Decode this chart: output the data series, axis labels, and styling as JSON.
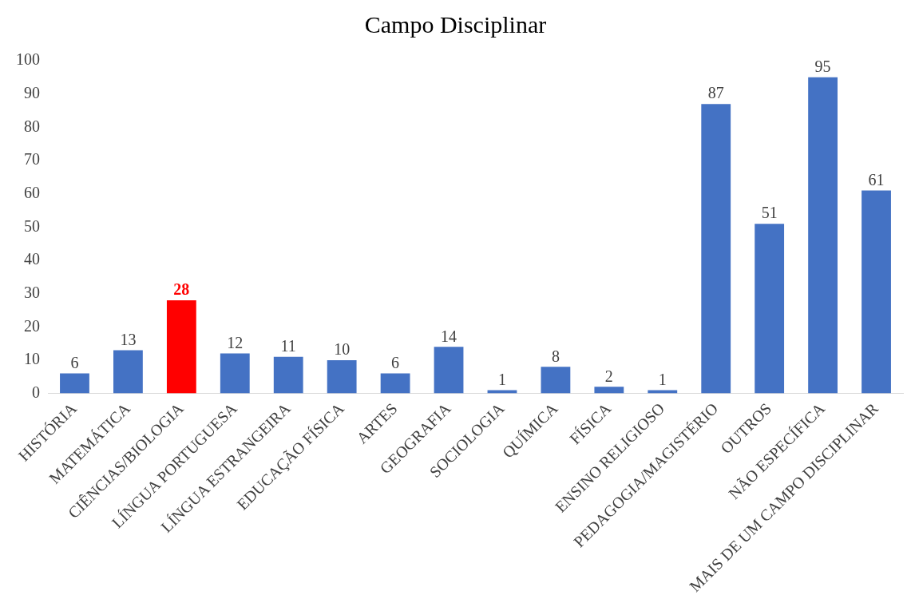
{
  "chart_data": {
    "type": "bar",
    "title": "Campo Disciplinar",
    "categories": [
      "HISTÓRIA",
      "MATEMÁTICA",
      "CIÊNCIAS/BIOLOGIA",
      "LÍNGUA PORTUGUESA",
      "LÍNGUA ESTRANGEIRA",
      "EDUCAÇÃO FÍSICA",
      "ARTES",
      "GEOGRAFIA",
      "SOCIOLOGIA",
      "QUÍMICA",
      "FÍSICA",
      "ENSINO RELIGIOSO",
      "PEDAGOGIA/MAGISTÉRIO",
      "OUTROS",
      "NÃO ESPECÍFICA",
      "MAIS DE UM CAMPO DISCIPLINAR"
    ],
    "values": [
      6,
      13,
      28,
      12,
      11,
      10,
      6,
      14,
      1,
      8,
      2,
      1,
      87,
      51,
      95,
      61
    ],
    "colors": [
      "#4472c4",
      "#4472c4",
      "#ff0000",
      "#4472c4",
      "#4472c4",
      "#4472c4",
      "#4472c4",
      "#4472c4",
      "#4472c4",
      "#4472c4",
      "#4472c4",
      "#4472c4",
      "#4472c4",
      "#4472c4",
      "#4472c4",
      "#4472c4"
    ],
    "ylim": [
      0,
      100
    ],
    "yticks": [
      0,
      10,
      20,
      30,
      40,
      50,
      60,
      70,
      80,
      90,
      100
    ],
    "grid": false,
    "legend": false,
    "data_labels": true
  }
}
